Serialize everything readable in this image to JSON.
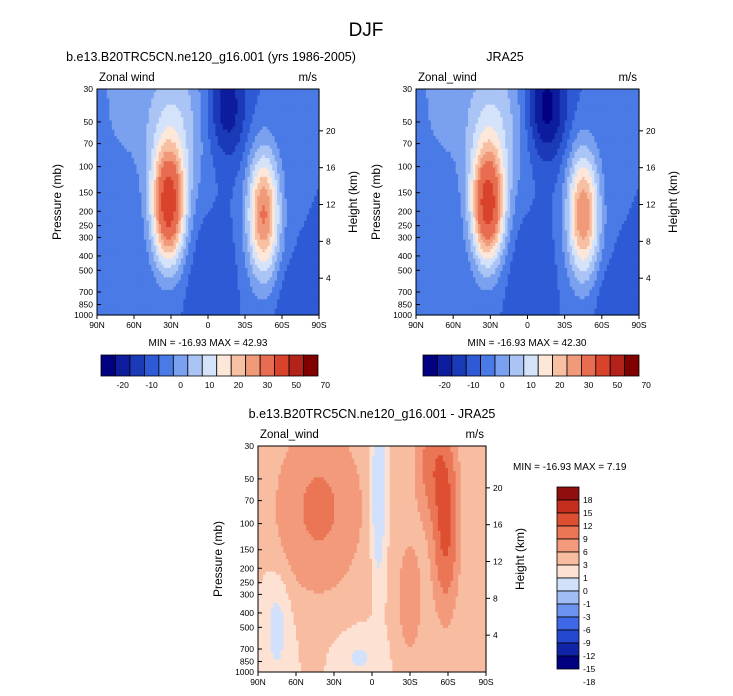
{
  "page_title": "DJF",
  "colors": {
    "mean": [
      "#000080",
      "#0d1d9e",
      "#1b3ab8",
      "#2e5ad6",
      "#4a7ae6",
      "#7aa1ef",
      "#a9c4f5",
      "#d4e2fa",
      "#fde7d9",
      "#f8c0a3",
      "#f19a7a",
      "#e86d50",
      "#d9432c",
      "#b4231a",
      "#800000"
    ],
    "diff": [
      "#000080",
      "#1024a8",
      "#2548d0",
      "#3e68e8",
      "#6b92ef",
      "#a0bdf5",
      "#d2e1fb",
      "#fde2d4",
      "#f8bda1",
      "#f29a7b",
      "#eb7656",
      "#de4f32",
      "#c52d1d",
      "#8f0f0f"
    ]
  },
  "chart_data": [
    {
      "type": "contour",
      "id": "model",
      "title": "b.e13.B20TRC5CN.ne120_g16.001 (yrs 1986-2005)",
      "left_label": "Zonal wind",
      "units": "m/s",
      "ylabel": "Pressure (mb)",
      "y2label": "Height (km)",
      "yticks": [
        "30",
        "50",
        "70",
        "100",
        "150",
        "200",
        "250",
        "300",
        "400",
        "500",
        "700",
        "850",
        "1000"
      ],
      "y2ticks": [
        "20",
        "16",
        "12",
        "8",
        "4"
      ],
      "xticks": [
        "90N",
        "60N",
        "30N",
        "0",
        "30S",
        "60S",
        "90S"
      ],
      "min": -16.93,
      "max": 42.93,
      "minmax_text": "MIN = -16.93   MAX = 42.93",
      "levels": [
        -25,
        -20,
        -15,
        -10,
        -5,
        0,
        5,
        10,
        15,
        20,
        25,
        30,
        40,
        50,
        60,
        70
      ],
      "colorbar_labels": [
        "-20",
        "-10",
        "0",
        "10",
        "20",
        "30",
        "50",
        "70"
      ]
    },
    {
      "type": "contour",
      "id": "obs",
      "title": "JRA25",
      "left_label": "Zonal_wind",
      "units": "m/s",
      "ylabel": "Pressure (mb)",
      "y2label": "Height (km)",
      "yticks": [
        "30",
        "50",
        "70",
        "100",
        "150",
        "200",
        "250",
        "300",
        "400",
        "500",
        "700",
        "850",
        "1000"
      ],
      "y2ticks": [
        "20",
        "16",
        "12",
        "8",
        "4"
      ],
      "xticks": [
        "90N",
        "60N",
        "30N",
        "0",
        "30S",
        "60S",
        "90S"
      ],
      "min": -16.93,
      "max": 42.3,
      "minmax_text": "MIN = -16.93   MAX = 42.30",
      "levels": [
        -25,
        -20,
        -15,
        -10,
        -5,
        0,
        5,
        10,
        15,
        20,
        25,
        30,
        40,
        50,
        60,
        70
      ],
      "colorbar_labels": [
        "-20",
        "-10",
        "0",
        "10",
        "20",
        "30",
        "50",
        "70"
      ]
    },
    {
      "type": "contour",
      "id": "diff",
      "title": "b.e13.B20TRC5CN.ne120_g16.001 - JRA25",
      "left_label": "Zonal_wind",
      "units": "m/s",
      "ylabel": "Pressure (mb)",
      "y2label": "Height (km)",
      "yticks": [
        "30",
        "50",
        "70",
        "100",
        "150",
        "200",
        "250",
        "300",
        "400",
        "500",
        "700",
        "850",
        "1000"
      ],
      "y2ticks": [
        "20",
        "16",
        "12",
        "8",
        "4"
      ],
      "xticks": [
        "90N",
        "60N",
        "30N",
        "0",
        "30S",
        "60S",
        "90S"
      ],
      "min": -16.93,
      "max": 7.19,
      "minmax_text": "MIN = -16.93   MAX =   7.19",
      "levels": [
        -21,
        -18,
        -15,
        -12,
        -9,
        -6,
        -3,
        -1,
        0,
        1,
        3,
        6,
        9,
        12,
        15,
        18,
        21
      ],
      "colorbar_labels": [
        "18",
        "15",
        "12",
        "9",
        "6",
        "3",
        "1",
        "0",
        "-1",
        "-3",
        "-6",
        "-9",
        "-12",
        "-15",
        "-18"
      ]
    }
  ]
}
